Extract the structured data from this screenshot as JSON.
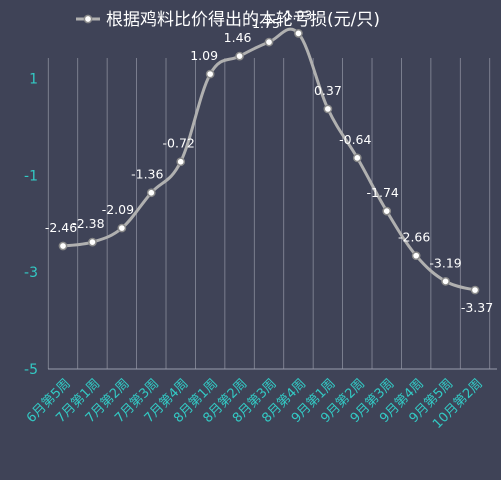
{
  "chart_data": {
    "type": "line",
    "title": "",
    "xlabel": "",
    "ylabel": "",
    "ylim": [
      -5,
      2
    ],
    "yticks": [
      1,
      -1,
      -3,
      -5
    ],
    "grid": {
      "vertical": true,
      "horizontal": false
    },
    "legend_placement": "top-center",
    "colors": {
      "background": "#3f4357",
      "line": "#b0b0b0",
      "marker_fill": "#ffffff",
      "marker_stroke": "#8a8a8a",
      "tick_text": "#33c9c4",
      "label_text": "#ffffff",
      "grid": "#8a8d9c"
    },
    "categories": [
      "6月第5周",
      "7月第1周",
      "7月第2周",
      "7月第3周",
      "7月第4周",
      "8月第1周",
      "8月第2周",
      "8月第3周",
      "8月第4周",
      "9月第1周",
      "9月第2周",
      "9月第3周",
      "9月第4周",
      "9月第5周",
      "10月第2周"
    ],
    "series": [
      {
        "name": "根据鸡料比价得出的本轮亏损(元/只)",
        "values": [
          -2.46,
          -2.38,
          -2.09,
          -1.36,
          -0.72,
          1.09,
          1.46,
          1.75,
          1.93,
          0.37,
          -0.64,
          -1.74,
          -2.66,
          -3.19,
          -3.37
        ],
        "labels": [
          "-2.46",
          "-2.38",
          "-2.09",
          "-1.36",
          "-0.72",
          "1.09",
          "1.46",
          "1.75",
          "1.93",
          "0.37",
          "-0.64",
          "-1.74",
          "-2.66",
          "-3.19",
          "-3.37"
        ]
      }
    ]
  }
}
